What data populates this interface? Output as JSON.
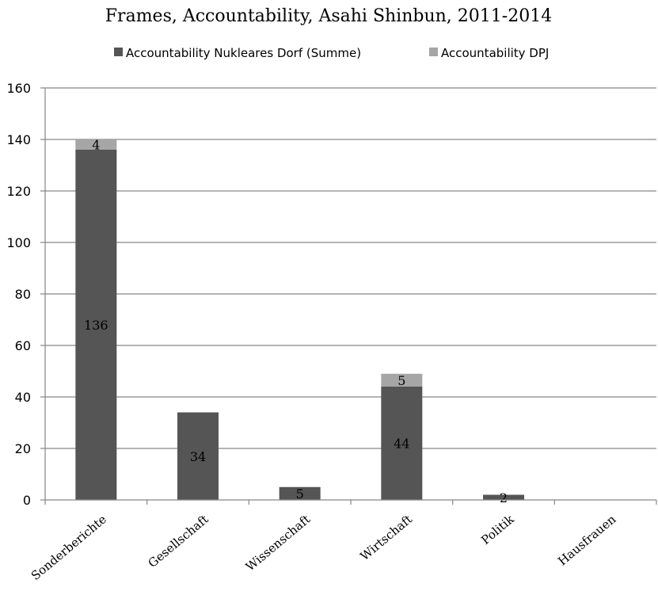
{
  "chart_data": {
    "type": "bar",
    "stacked": true,
    "title": "Frames, Accountability, Asahi Shinbun, 2011-2014",
    "categories": [
      "Sonderberichte",
      "Gesellschaft",
      "Wissenschaft",
      "Wirtschaft",
      "Politik",
      "Hausfrauen"
    ],
    "series": [
      {
        "name": "Accountability Nukleares Dorf (Summe)",
        "color": "#555555",
        "values": [
          136,
          34,
          5,
          44,
          2,
          0
        ],
        "labels": [
          "136",
          "34",
          "5",
          "44",
          "2",
          null
        ]
      },
      {
        "name": "Accountability DPJ",
        "color": "#a6a6a6",
        "values": [
          4,
          0,
          0,
          5,
          0,
          0
        ],
        "labels": [
          "4",
          null,
          null,
          "5",
          null,
          null
        ]
      }
    ],
    "ylim": [
      0,
      160
    ],
    "yticks": [
      "0",
      "20",
      "40",
      "60",
      "80",
      "100",
      "120",
      "140",
      "160"
    ],
    "grid": true,
    "legend_position": "top"
  }
}
